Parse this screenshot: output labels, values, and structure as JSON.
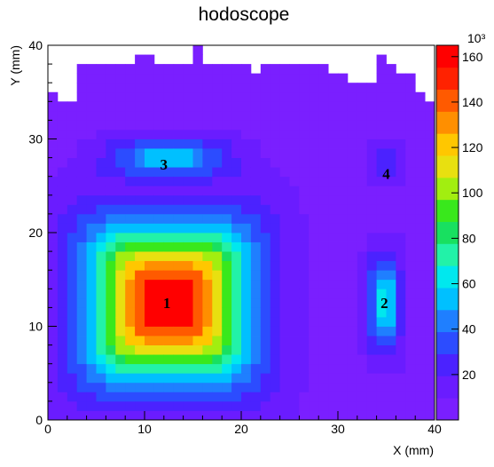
{
  "chart_data": {
    "type": "heatmap",
    "title": "hodoscope",
    "xlabel": "X (mm)",
    "ylabel": "Y (mm)",
    "xlim": [
      0,
      40
    ],
    "ylim": [
      0,
      40
    ],
    "x_ticks": [
      "0",
      "10",
      "20",
      "30",
      "40"
    ],
    "y_ticks": [
      "0",
      "10",
      "20",
      "30",
      "40"
    ],
    "colorbar": {
      "exponent_label": "10³",
      "range": [
        0,
        165
      ],
      "ticks": [
        "20",
        "40",
        "60",
        "80",
        "100",
        "120",
        "140",
        "160"
      ]
    },
    "region_labels": [
      {
        "text": "1",
        "x": 12.3,
        "y": 12.5
      },
      {
        "text": "2",
        "x": 34.8,
        "y": 12.5
      },
      {
        "text": "3",
        "x": 12.0,
        "y": 27.3
      },
      {
        "text": "4",
        "x": 35.0,
        "y": 26.3
      }
    ],
    "bins": {
      "nx": 40,
      "ny": 40,
      "cell_width_mm": 1,
      "cell_height_mm": 1
    },
    "cells": "2D histogram counts (×10³) per 1 mm × 1 mm bin; empty (white) bins at the top of the map",
    "colors": {
      "palette": [
        "#7a1fff",
        "#6a1cff",
        "#4b22ff",
        "#2c4cff",
        "#1f7fff",
        "#00c0ff",
        "#00e8ee",
        "#22f2a8",
        "#18e060",
        "#39e81c",
        "#a2ee10",
        "#e8e010",
        "#ffc700",
        "#ff8f00",
        "#ff5a00",
        "#ff2200",
        "#ff0000"
      ],
      "frame": "#000000"
    }
  }
}
